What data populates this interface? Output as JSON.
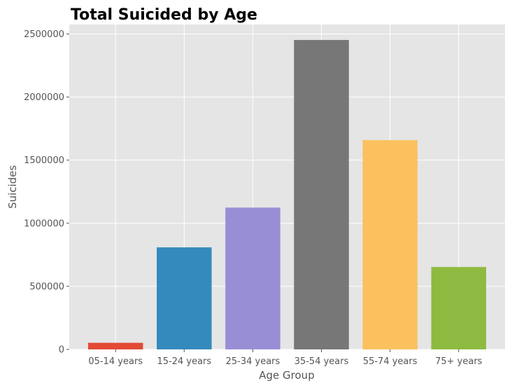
{
  "chart_data": {
    "type": "bar",
    "title": "Total Suicided by Age",
    "xlabel": "Age Group",
    "ylabel": "Suicides",
    "categories": [
      "05-14 years",
      "15-24 years",
      "25-34 years",
      "35-54 years",
      "55-74 years",
      "75+ years"
    ],
    "values": [
      52264,
      808542,
      1123912,
      2452141,
      1658443,
      653118
    ],
    "colors": [
      "#E24A33",
      "#348ABD",
      "#988ED5",
      "#777777",
      "#FBC15E",
      "#8EBA42"
    ],
    "ylim": [
      0,
      2574748
    ],
    "yticks": [
      0,
      500000,
      1000000,
      1500000,
      2000000,
      2500000
    ],
    "ytick_labels": [
      "0",
      "500000",
      "1000000",
      "1500000",
      "2000000",
      "2500000"
    ],
    "grid": true,
    "style": "ggplot"
  }
}
